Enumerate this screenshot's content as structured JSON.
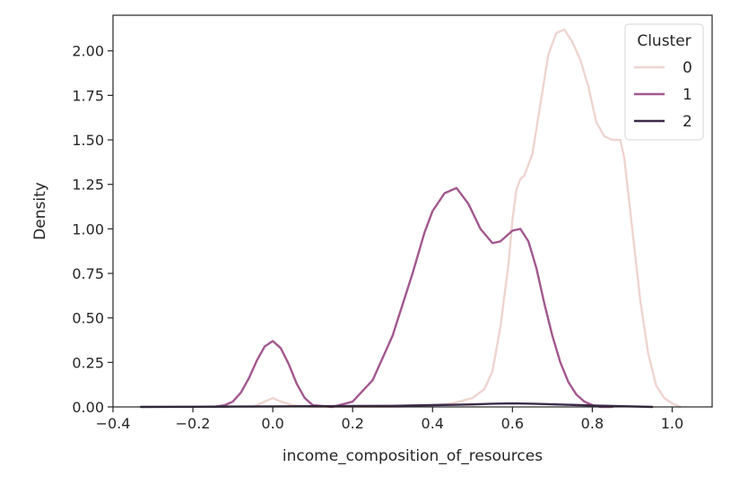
{
  "chart_data": {
    "type": "line",
    "xlabel": "income_composition_of_resources",
    "ylabel": "Density",
    "xlim": [
      -0.4,
      1.1
    ],
    "ylim": [
      0,
      2.2
    ],
    "xticks": [
      -0.4,
      -0.2,
      0.0,
      0.2,
      0.4,
      0.6,
      0.8,
      1.0
    ],
    "xtick_labels": [
      "−0.4",
      "−0.2",
      "0.0",
      "0.2",
      "0.4",
      "0.6",
      "0.8",
      "1.0"
    ],
    "yticks": [
      0.0,
      0.25,
      0.5,
      0.75,
      1.0,
      1.25,
      1.5,
      1.75,
      2.0
    ],
    "ytick_labels": [
      "0.00",
      "0.25",
      "0.50",
      "0.75",
      "1.00",
      "1.25",
      "1.50",
      "1.75",
      "2.00"
    ],
    "grid": false,
    "legend": {
      "title": "Cluster",
      "position": "top-right"
    },
    "series": [
      {
        "name": "0",
        "color": "#eed4cf",
        "x": [
          -0.05,
          -0.02,
          0.0,
          0.02,
          0.05,
          0.1,
          0.2,
          0.3,
          0.4,
          0.45,
          0.5,
          0.53,
          0.55,
          0.57,
          0.59,
          0.6,
          0.61,
          0.62,
          0.63,
          0.65,
          0.67,
          0.69,
          0.71,
          0.73,
          0.75,
          0.77,
          0.79,
          0.81,
          0.83,
          0.85,
          0.87,
          0.88,
          0.89,
          0.9,
          0.92,
          0.94,
          0.96,
          0.98,
          1.0,
          1.02
        ],
        "y": [
          0.0,
          0.03,
          0.05,
          0.03,
          0.01,
          0.0,
          0.0,
          0.0,
          0.01,
          0.02,
          0.05,
          0.1,
          0.2,
          0.45,
          0.8,
          1.05,
          1.22,
          1.28,
          1.3,
          1.42,
          1.7,
          1.98,
          2.1,
          2.12,
          2.05,
          1.95,
          1.8,
          1.6,
          1.52,
          1.5,
          1.5,
          1.4,
          1.2,
          1.0,
          0.6,
          0.3,
          0.12,
          0.05,
          0.02,
          0.0
        ]
      },
      {
        "name": "1",
        "color": "#a2578e",
        "x": [
          -0.15,
          -0.12,
          -0.1,
          -0.08,
          -0.06,
          -0.04,
          -0.02,
          0.0,
          0.02,
          0.04,
          0.06,
          0.08,
          0.1,
          0.15,
          0.2,
          0.25,
          0.3,
          0.35,
          0.38,
          0.4,
          0.43,
          0.46,
          0.49,
          0.52,
          0.55,
          0.57,
          0.6,
          0.62,
          0.64,
          0.66,
          0.68,
          0.7,
          0.72,
          0.74,
          0.76,
          0.78,
          0.8,
          0.82,
          0.85
        ],
        "y": [
          0.0,
          0.01,
          0.03,
          0.08,
          0.16,
          0.26,
          0.34,
          0.37,
          0.33,
          0.24,
          0.13,
          0.05,
          0.01,
          0.0,
          0.03,
          0.15,
          0.4,
          0.75,
          0.98,
          1.1,
          1.2,
          1.23,
          1.14,
          1.0,
          0.92,
          0.93,
          0.99,
          1.0,
          0.93,
          0.78,
          0.58,
          0.4,
          0.25,
          0.14,
          0.07,
          0.03,
          0.01,
          0.0,
          0.0
        ]
      },
      {
        "name": "2",
        "color": "#3c2a4a",
        "x": [
          -0.33,
          -0.2,
          -0.1,
          0.0,
          0.1,
          0.2,
          0.3,
          0.4,
          0.5,
          0.55,
          0.6,
          0.65,
          0.7,
          0.8,
          0.9,
          0.95
        ],
        "y": [
          0.0,
          0.001,
          0.002,
          0.003,
          0.004,
          0.005,
          0.006,
          0.01,
          0.014,
          0.018,
          0.02,
          0.018,
          0.015,
          0.008,
          0.003,
          0.0
        ]
      }
    ]
  }
}
